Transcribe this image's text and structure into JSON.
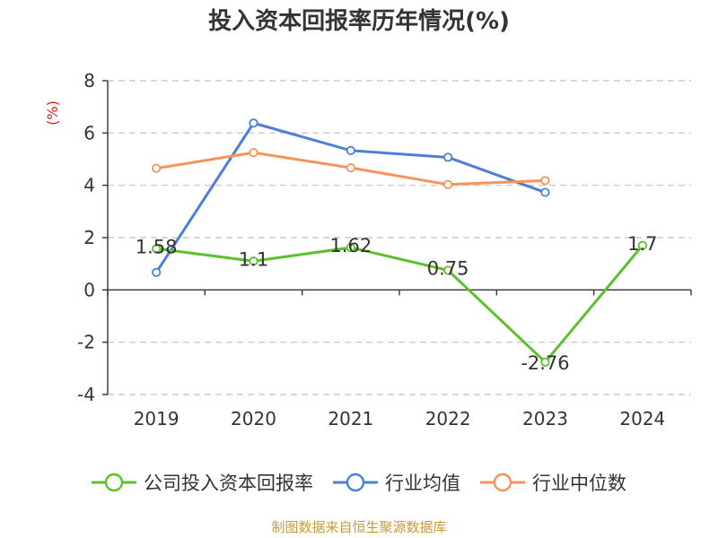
{
  "chart_data": {
    "type": "line",
    "title": "投入资本回报率历年情况(%)",
    "ylabel": "(%)",
    "xlabel": "",
    "categories": [
      "2019",
      "2020",
      "2021",
      "2022",
      "2023",
      "2024"
    ],
    "ylim": [
      -4,
      8
    ],
    "yticks": [
      8,
      6,
      4,
      2,
      0,
      -2,
      -4
    ],
    "grid": true,
    "legend_position": "bottom",
    "series": [
      {
        "name": "公司投入资本回报率",
        "color": "#5cc12c",
        "values": [
          1.58,
          1.1,
          1.62,
          0.75,
          -2.76,
          1.7
        ],
        "labels": [
          "1.58",
          "1.1",
          "1.62",
          "0.75",
          "-2.76",
          "1.7"
        ]
      },
      {
        "name": "行业均值",
        "color": "#4e7fd6",
        "values": [
          0.67,
          6.38,
          5.33,
          5.07,
          3.73,
          null
        ],
        "labels": []
      },
      {
        "name": "行业中位数",
        "color": "#f6935a",
        "values": [
          4.65,
          5.25,
          4.67,
          4.03,
          4.18,
          null
        ],
        "labels": []
      }
    ]
  },
  "source_note": "制图数据来自恒生聚源数据库",
  "colors": {
    "ylabel": "#e02020",
    "axis": "#333333",
    "grid": "#cccccc",
    "text": "#333333"
  }
}
